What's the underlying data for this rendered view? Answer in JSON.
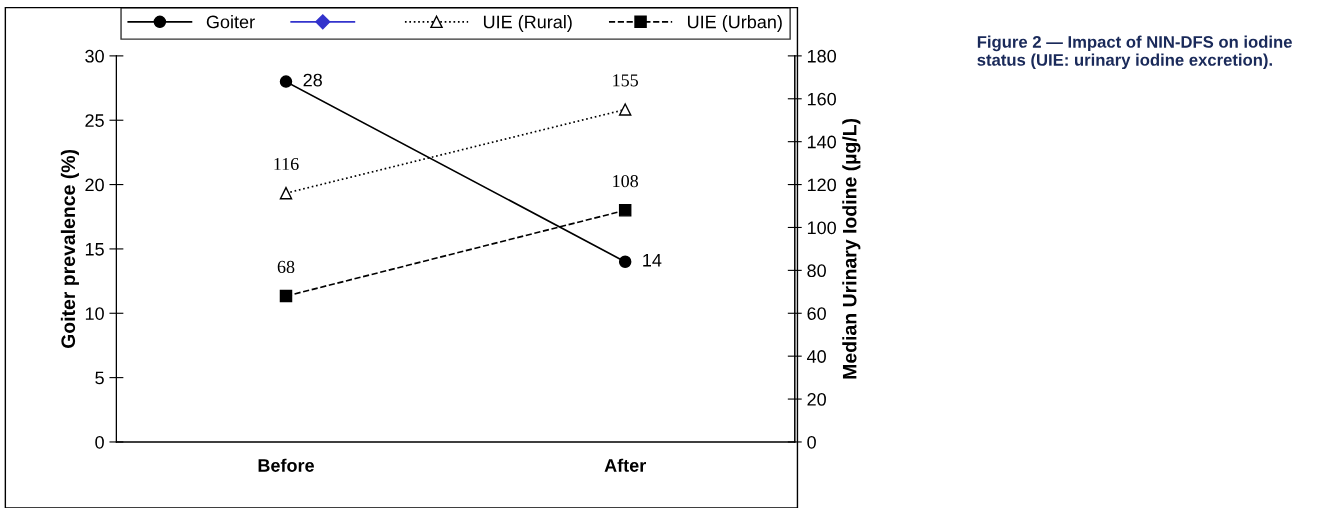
{
  "chart_data": {
    "type": "line",
    "title": "Figure 2 — Impact of NIN-DFS on iodine status (UIE: urinary iodine excretion).",
    "ylabel": "Goiter prevalence (%)",
    "y2label": "Median Urinary Iodine (µg/L)",
    "categories": [
      "Before",
      "After"
    ],
    "ylim": [
      0,
      30
    ],
    "yticks": [
      0,
      5,
      10,
      15,
      20,
      25,
      30
    ],
    "y2lim": [
      0,
      180
    ],
    "y2ticks": [
      0,
      20,
      40,
      60,
      80,
      100,
      120,
      140,
      160,
      180
    ],
    "legend": "top",
    "grid": false,
    "data_labels": true,
    "series": [
      {
        "name": "Goiter",
        "color": "#000000",
        "values": [
          28,
          14
        ],
        "marker": "circle",
        "line_style": "solid"
      },
      {
        "name": "UIE (Rural)",
        "color": "#000000",
        "values": [
          116,
          155
        ],
        "marker": "triangle",
        "line_style": "dotted",
        "axis": "y2"
      },
      {
        "name": "UIE (Urban)",
        "color": "#000000",
        "values": [
          68,
          108
        ],
        "marker": "square",
        "line_style": "dashed",
        "axis": "y2"
      }
    ]
  }
}
